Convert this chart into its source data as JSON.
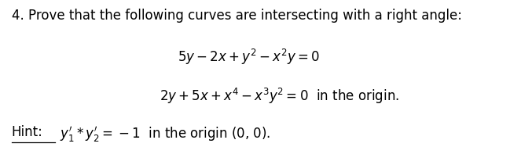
{
  "background_color": "#ffffff",
  "figsize": [
    6.63,
    1.88
  ],
  "dpi": 100,
  "line1": "4. Prove that the following curves are intersecting with a right angle:",
  "eq1": "$5y-2x+y^{2}-x^{2}y=0$",
  "eq2": "$2y+5x+x^{4}-x^{3}y^{2}=0$  in the origin.",
  "hint_label": "Hint:",
  "hint_body": "$y_{1}^{\\prime}*y_{2}^{\\prime}=-1$  in the origin (0, 0).",
  "font_size": 12,
  "text_color": "#000000"
}
